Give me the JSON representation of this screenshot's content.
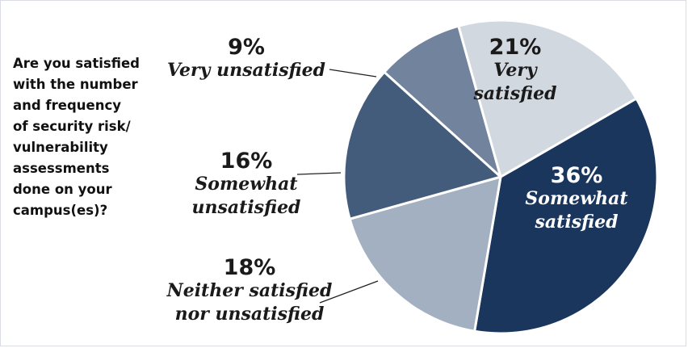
{
  "question": "Are you satisfied\nwith the number\nand frequency\nof security risk/\nvulnerability\nassessments\ndone on your\ncampus(es)?",
  "chart_data": {
    "type": "pie",
    "title": "",
    "start_angle_deg": -30,
    "direction": "clockwise",
    "slices": [
      {
        "name": "Somewhat satisfied",
        "pct_label": "36%",
        "value": 36,
        "color": "#1a365d",
        "label_lines": [
          "Somewhat",
          "satisfied"
        ],
        "label_color": "#ffffff"
      },
      {
        "name": "Neither satisfied nor unsatisfied",
        "pct_label": "18%",
        "value": 18,
        "color": "#a3b0c1",
        "label_lines": [
          "Neither satisfied",
          "nor unsatisfied"
        ],
        "label_color": "#1a1a1a"
      },
      {
        "name": "Somewhat unsatisfied",
        "pct_label": "16%",
        "value": 16,
        "color": "#445c7c",
        "label_lines": [
          "Somewhat",
          "unsatisfied"
        ],
        "label_color": "#1a1a1a"
      },
      {
        "name": "Very unsatisfied",
        "pct_label": "9%",
        "value": 9,
        "color": "#72849d",
        "label_lines": [
          "Very unsatisfied"
        ],
        "label_color": "#1a1a1a"
      },
      {
        "name": "Very satisfied",
        "pct_label": "21%",
        "value": 21,
        "color": "#d2d8e0",
        "label_lines": [
          "Very",
          "satisfied"
        ],
        "label_color": "#1a1a1a"
      }
    ]
  }
}
